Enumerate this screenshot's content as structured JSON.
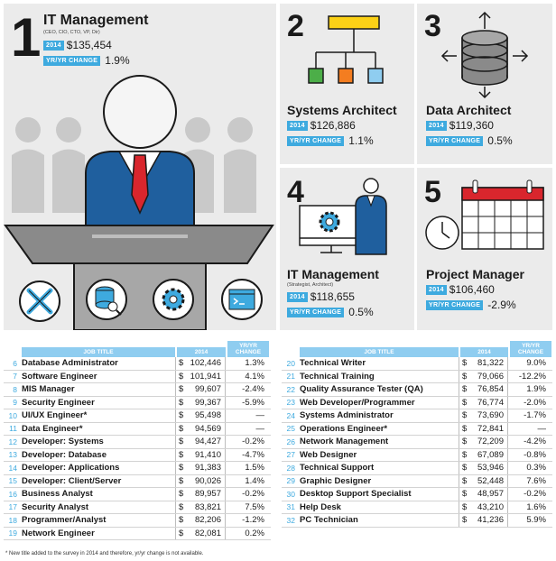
{
  "panels": [
    {
      "rank": "1",
      "title": "IT Management",
      "subtitle": "(CEO, CIO, CTO, VP, Dir)",
      "year": "2014",
      "salary": "$135,454",
      "change_label": "YR/YR CHANGE",
      "change": "1.9%"
    },
    {
      "rank": "2",
      "title": "Systems Architect",
      "subtitle": "",
      "year": "2014",
      "salary": "$126,886",
      "change_label": "YR/YR CHANGE",
      "change": "1.1%"
    },
    {
      "rank": "3",
      "title": "Data Architect",
      "subtitle": "",
      "year": "2014",
      "salary": "$119,360",
      "change_label": "YR/YR CHANGE",
      "change": "0.5%"
    },
    {
      "rank": "4",
      "title": "IT Management",
      "subtitle": "(Strategist, Architect)",
      "year": "2014",
      "salary": "$118,655",
      "change_label": "YR/YR CHANGE",
      "change": "0.5%"
    },
    {
      "rank": "5",
      "title": "Project Manager",
      "subtitle": "",
      "year": "2014",
      "salary": "$106,460",
      "change_label": "YR/YR CHANGE",
      "change": "-2.9%"
    }
  ],
  "table_headers": {
    "job_title": "JOB TITLE",
    "year": "2014",
    "change_line1": "YR/YR",
    "change_line2": "CHANGE"
  },
  "currency": "$",
  "table_left": [
    {
      "n": "6",
      "title": "Database Administrator",
      "salary": "102,446",
      "change": "1.3%"
    },
    {
      "n": "7",
      "title": "Software Engineer",
      "salary": "101,941",
      "change": "4.1%"
    },
    {
      "n": "8",
      "title": "MIS Manager",
      "salary": "99,607",
      "change": "-2.4%"
    },
    {
      "n": "9",
      "title": "Security Engineer",
      "salary": "99,367",
      "change": "-5.9%"
    },
    {
      "n": "10",
      "title": "UI/UX Engineer*",
      "salary": "95,498",
      "change": "—"
    },
    {
      "n": "11",
      "title": "Data Engineer*",
      "salary": "94,569",
      "change": "—"
    },
    {
      "n": "12",
      "title": "Developer: Systems",
      "salary": "94,427",
      "change": "-0.2%"
    },
    {
      "n": "13",
      "title": "Developer: Database",
      "salary": "91,410",
      "change": "-4.7%"
    },
    {
      "n": "14",
      "title": "Developer: Applications",
      "salary": "91,383",
      "change": "1.5%"
    },
    {
      "n": "15",
      "title": "Developer: Client/Server",
      "salary": "90,026",
      "change": "1.4%"
    },
    {
      "n": "16",
      "title": "Business Analyst",
      "salary": "89,957",
      "change": "-0.2%"
    },
    {
      "n": "17",
      "title": "Security Analyst",
      "salary": "83,821",
      "change": "7.5%"
    },
    {
      "n": "18",
      "title": "Programmer/Analyst",
      "salary": "82,206",
      "change": "-1.2%"
    },
    {
      "n": "19",
      "title": "Network Engineer",
      "salary": "82,081",
      "change": "0.2%"
    }
  ],
  "table_right": [
    {
      "n": "20",
      "title": "Technical Writer",
      "salary": "81,322",
      "change": "9.0%"
    },
    {
      "n": "21",
      "title": "Technical Training",
      "salary": "79,066",
      "change": "-12.2%"
    },
    {
      "n": "22",
      "title": "Quality Assurance Tester (QA)",
      "salary": "76,854",
      "change": "1.9%"
    },
    {
      "n": "23",
      "title": "Web Developer/Programmer",
      "salary": "76,774",
      "change": "-2.0%"
    },
    {
      "n": "24",
      "title": "Systems Administrator",
      "salary": "73,690",
      "change": "-1.7%"
    },
    {
      "n": "25",
      "title": "Operations Engineer*",
      "salary": "72,841",
      "change": "—"
    },
    {
      "n": "26",
      "title": "Network Management",
      "salary": "72,209",
      "change": "-4.2%"
    },
    {
      "n": "27",
      "title": "Web Designer",
      "salary": "67,089",
      "change": "-0.8%"
    },
    {
      "n": "28",
      "title": "Technical Support",
      "salary": "53,946",
      "change": "0.3%"
    },
    {
      "n": "29",
      "title": "Graphic Designer",
      "salary": "52,448",
      "change": "7.6%"
    },
    {
      "n": "30",
      "title": "Desktop Support Specialist",
      "salary": "48,957",
      "change": "-0.2%"
    },
    {
      "n": "31",
      "title": "Help Desk",
      "salary": "43,210",
      "change": "1.6%"
    },
    {
      "n": "32",
      "title": "PC Technician",
      "salary": "41,236",
      "change": "5.9%"
    }
  ],
  "footnote": "* New title added to the survey in 2014 and therefore, yr/yr change is not available.",
  "colors": {
    "accent": "#3eaadf",
    "header": "#8fcdf0",
    "navy": "#1f5f9e",
    "red": "#d9262d",
    "green": "#4cae48",
    "orange": "#f47d20",
    "yellow": "#fcd116",
    "panel": "#ebebeb"
  },
  "icons": [
    "tools-icon",
    "database-icon",
    "gear-icon",
    "terminal-icon",
    "org-chart-icon",
    "arrows-icon",
    "monitor-gear-icon",
    "person-icon",
    "clock-icon",
    "calendar-icon"
  ]
}
